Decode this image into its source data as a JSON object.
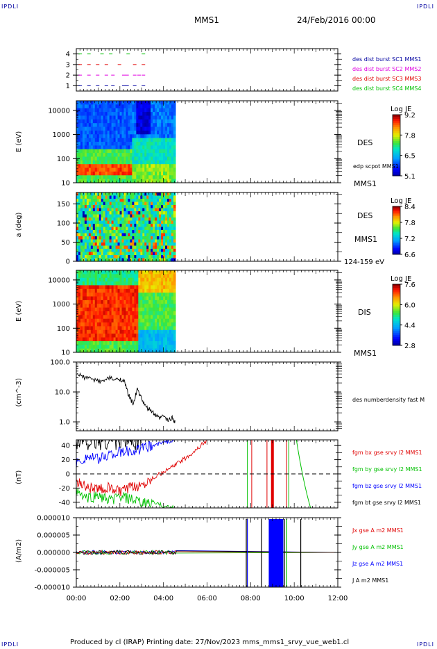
{
  "corners": {
    "tl": "IPDLI",
    "tr": "IPDLI",
    "bl": "IPDLI",
    "br": "IPDLI"
  },
  "header": {
    "spacecraft": "MMS1",
    "date": "24/Feb/2016 00:00"
  },
  "footer": "Produced by cl (IRAP)   Printing date: 27/Nov/2023   mms_mms1_srvy_vue_web1.cl",
  "colors": {
    "purple": "#0000a0",
    "magenta": "#e000e0",
    "red": "#e00000",
    "green": "#00c000",
    "blue": "#0000ff",
    "black": "#000000"
  },
  "chart_data": [
    {
      "type": "scatter",
      "id": "availability",
      "x_ticks": [
        "00:00",
        "02:00",
        "04:00",
        "06:00",
        "08:00",
        "10:00",
        "12:00"
      ],
      "x_range_hours": [
        0,
        12
      ],
      "y_ticks": [
        "1",
        "2",
        "3",
        "4"
      ],
      "y_range": [
        0.5,
        4.5
      ],
      "series": [
        {
          "name": "des dist burst SC1 MMS1",
          "level": 1,
          "color": "#0000a0",
          "x": [
            0.1,
            0.5,
            0.9,
            1.3,
            1.6,
            2.1,
            2.25,
            2.6,
            3.0
          ]
        },
        {
          "name": "des dist burst SC2 MMS2",
          "level": 2,
          "color": "#e000e0",
          "x": [
            0.1,
            0.5,
            0.9,
            1.3,
            1.6,
            2.1,
            2.25,
            2.6,
            2.8,
            3.0
          ]
        },
        {
          "name": "des dist burst SC3 MMS3",
          "level": 3,
          "color": "#e00000",
          "x": [
            0.1,
            0.5,
            0.9,
            1.3,
            1.9,
            2.6,
            3.0
          ]
        },
        {
          "name": "des dist burst SC4 MMS4",
          "level": 4,
          "color": "#00c000",
          "x": [
            0.1,
            0.5,
            1.1,
            1.5,
            2.3,
            3.0
          ]
        }
      ]
    },
    {
      "type": "heatmap",
      "id": "des-energy",
      "ylabel": "E (eV)",
      "y_ticks": [
        "10",
        "100",
        "1000",
        "10000"
      ],
      "y_range_log": [
        1,
        4.4
      ],
      "data_end_hours": 4.55,
      "annotations": [
        "DES",
        "edp scpot MMS1",
        "MMS1"
      ],
      "colorbar": {
        "label": "Log JE",
        "ticks": [
          "9.2",
          "7.8",
          "6.5",
          "5.1"
        ],
        "range": [
          5.1,
          9.2
        ]
      }
    },
    {
      "type": "heatmap",
      "id": "des-pitch",
      "ylabel": "a (deg)",
      "y_ticks": [
        "0",
        "50",
        "100",
        "150"
      ],
      "y_range": [
        0,
        180
      ],
      "data_end_hours": 4.55,
      "annotations": [
        "DES",
        "MMS1",
        "124-159 eV"
      ],
      "colorbar": {
        "label": "Log JE",
        "ticks": [
          "8.4",
          "7.8",
          "7.2",
          "6.6"
        ],
        "range": [
          6.6,
          8.4
        ]
      }
    },
    {
      "type": "heatmap",
      "id": "dis-energy",
      "ylabel": "E (eV)",
      "y_ticks": [
        "10",
        "100",
        "1000",
        "10000"
      ],
      "y_range_log": [
        1,
        4.4
      ],
      "data_end_hours": 4.55,
      "annotations": [
        "DIS",
        "MMS1"
      ],
      "colorbar": {
        "label": "Log JE",
        "ticks": [
          "7.6",
          "6.0",
          "4.4",
          "2.8"
        ],
        "range": [
          2.8,
          7.6
        ]
      }
    },
    {
      "type": "line",
      "id": "density",
      "ylabel": "(cm^-3)",
      "y_ticks": [
        "100.0",
        "10.0",
        "1.0"
      ],
      "y_range_log": [
        -0.3,
        2
      ],
      "series": [
        {
          "name": "des numberdensity fast M",
          "color": "#000000",
          "x": [
            0.05,
            0.3,
            0.6,
            0.9,
            1.2,
            1.5,
            1.8,
            2.0,
            2.2,
            2.4,
            2.6,
            2.8,
            3.0,
            3.2,
            3.4,
            3.6,
            3.8,
            4.0,
            4.2,
            4.4,
            4.55
          ],
          "y": [
            40,
            32,
            28,
            25,
            22,
            30,
            25,
            28,
            22,
            8,
            4,
            12,
            6,
            3,
            2.5,
            1.8,
            1.3,
            1.6,
            1.1,
            1.4,
            1.0
          ]
        }
      ]
    },
    {
      "type": "line",
      "id": "magnetic-field",
      "ylabel": "(nT)",
      "y_ticks": [
        "40",
        "20",
        "0",
        "-20",
        "-40"
      ],
      "y_range": [
        -48,
        48
      ],
      "series": [
        {
          "name": "fgm bx gse srvy l2 MMS1",
          "color": "#e00000",
          "x": [
            0,
            0.5,
            1.0,
            1.5,
            2.0,
            2.5,
            3.0,
            3.5,
            4.0,
            4.5,
            5.0,
            5.5,
            6.0
          ],
          "y": [
            -10,
            -18,
            -22,
            -20,
            -25,
            -20,
            -15,
            -5,
            2,
            12,
            22,
            34,
            48
          ]
        },
        {
          "name": "fgm by gse srvy l2 MMS1",
          "color": "#00c000",
          "x": [
            0,
            0.5,
            1.0,
            1.5,
            2.0,
            2.5,
            3.0,
            3.5,
            4.0,
            4.5
          ],
          "y": [
            -25,
            -35,
            -30,
            -38,
            -32,
            -36,
            -42,
            -40,
            -45,
            -48
          ]
        },
        {
          "name": "fgm bz gse srvy l2 MMS1",
          "color": "#0000ff",
          "x": [
            0,
            0.5,
            1.0,
            1.5,
            2.0,
            2.5,
            3.0,
            3.5,
            4.0,
            4.5
          ],
          "y": [
            15,
            25,
            20,
            28,
            30,
            32,
            35,
            40,
            44,
            48
          ]
        },
        {
          "name": "fgm bt gse srvy l2 MMS1",
          "color": "#000000",
          "x": [
            0,
            0.5,
            1.0,
            1.5,
            2.0,
            2.5,
            3.0
          ],
          "y": [
            45,
            48,
            46,
            48,
            47,
            48,
            46
          ]
        }
      ]
    },
    {
      "type": "line",
      "id": "current-density",
      "ylabel": "(A/m2)",
      "y_ticks": [
        "0.000010",
        "0.000005",
        "0.000000",
        "-0.000005",
        "-0.000010"
      ],
      "y_range": [
        -1e-05,
        1e-05
      ],
      "series": [
        {
          "name": "Jx gse A m2 MMS1",
          "color": "#e00000"
        },
        {
          "name": "Jy gse A m2 MMS1",
          "color": "#00c000"
        },
        {
          "name": "Jz gse A m2 MMS1",
          "color": "#0000ff"
        },
        {
          "name": "J A m2 MMS1",
          "color": "#000000"
        }
      ]
    }
  ]
}
